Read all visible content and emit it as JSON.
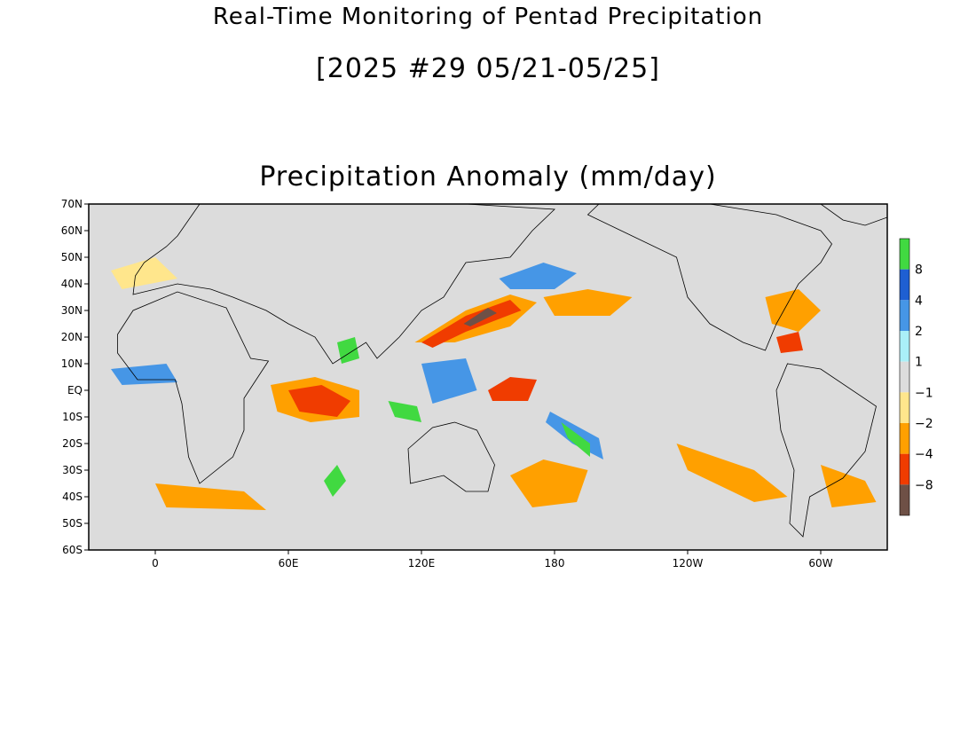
{
  "titles": {
    "main": "Real-Time Monitoring of Pentad Precipitation",
    "period": "[2025 #29 05/21-05/25]",
    "panel": "Precipitation Anomaly (mm/day)"
  },
  "map": {
    "lon_range": [
      -30,
      330
    ],
    "lat_range": [
      -60,
      70
    ],
    "lat_ticks": [
      {
        "lat": 70,
        "label": "70N"
      },
      {
        "lat": 60,
        "label": "60N"
      },
      {
        "lat": 50,
        "label": "50N"
      },
      {
        "lat": 40,
        "label": "40N"
      },
      {
        "lat": 30,
        "label": "30N"
      },
      {
        "lat": 20,
        "label": "20N"
      },
      {
        "lat": 10,
        "label": "10N"
      },
      {
        "lat": 0,
        "label": "EQ"
      },
      {
        "lat": -10,
        "label": "10S"
      },
      {
        "lat": -20,
        "label": "20S"
      },
      {
        "lat": -30,
        "label": "30S"
      },
      {
        "lat": -40,
        "label": "40S"
      },
      {
        "lat": -50,
        "label": "50S"
      },
      {
        "lat": -60,
        "label": "60S"
      }
    ],
    "lon_ticks": [
      {
        "lon": 0,
        "label": "0"
      },
      {
        "lon": 60,
        "label": "60E"
      },
      {
        "lon": 120,
        "label": "120E"
      },
      {
        "lon": 180,
        "label": "180"
      },
      {
        "lon": 240,
        "label": "120W"
      },
      {
        "lon": 300,
        "label": "60W"
      }
    ],
    "background_color": "#dcdcdc",
    "coastline_color": "#000000"
  },
  "colorbar": {
    "bins": [
      {
        "color": "#41d941"
      },
      {
        "color": "#1e5fd2"
      },
      {
        "color": "#4696e6"
      },
      {
        "color": "#aaf0f8"
      },
      {
        "color": "#dcdcdc"
      },
      {
        "color": "#ffe68c"
      },
      {
        "color": "#ffa000"
      },
      {
        "color": "#f03c00"
      },
      {
        "color": "#6e5046"
      }
    ],
    "labels": [
      "8",
      "4",
      "2",
      "1",
      "−1",
      "−2",
      "−4",
      "−8"
    ]
  },
  "anomaly_regions": [
    {
      "name": "nw-pacific-band",
      "category": "dry",
      "color": "#ffa000",
      "poly": [
        [
          117,
          18
        ],
        [
          140,
          30
        ],
        [
          160,
          36
        ],
        [
          172,
          33
        ],
        [
          160,
          24
        ],
        [
          135,
          18
        ]
      ]
    },
    {
      "name": "nw-pacific-core",
      "category": "very-dry",
      "color": "#f03c00",
      "poly": [
        [
          120,
          18
        ],
        [
          140,
          28
        ],
        [
          160,
          34
        ],
        [
          165,
          30
        ],
        [
          140,
          22
        ],
        [
          125,
          16
        ]
      ]
    },
    {
      "name": "nw-pacific-extreme",
      "category": "extreme-dry",
      "color": "#6e5046",
      "poly": [
        [
          139,
          25
        ],
        [
          150,
          31
        ],
        [
          154,
          29
        ],
        [
          142,
          24
        ]
      ]
    },
    {
      "name": "central-pacific-dry",
      "category": "dry",
      "color": "#ffa000",
      "poly": [
        [
          175,
          35
        ],
        [
          195,
          38
        ],
        [
          215,
          35
        ],
        [
          205,
          28
        ],
        [
          180,
          28
        ]
      ]
    },
    {
      "name": "indian-ocean-dry",
      "category": "dry",
      "color": "#ffa000",
      "poly": [
        [
          52,
          2
        ],
        [
          72,
          5
        ],
        [
          92,
          0
        ],
        [
          92,
          -10
        ],
        [
          70,
          -12
        ],
        [
          55,
          -8
        ]
      ]
    },
    {
      "name": "indian-ocean-core",
      "category": "very-dry",
      "color": "#f03c00",
      "poly": [
        [
          60,
          0
        ],
        [
          75,
          2
        ],
        [
          88,
          -4
        ],
        [
          82,
          -10
        ],
        [
          65,
          -8
        ]
      ]
    },
    {
      "name": "sw-pacific-dry",
      "category": "dry",
      "color": "#ffa000",
      "poly": [
        [
          160,
          -32
        ],
        [
          175,
          -26
        ],
        [
          195,
          -30
        ],
        [
          190,
          -42
        ],
        [
          170,
          -44
        ]
      ]
    },
    {
      "name": "spcz-wet-outer",
      "category": "wet",
      "color": "#4696e6",
      "poly": [
        [
          178,
          -8
        ],
        [
          200,
          -18
        ],
        [
          202,
          -26
        ],
        [
          188,
          -20
        ],
        [
          176,
          -12
        ]
      ]
    },
    {
      "name": "spcz-wet-core",
      "category": "very-wet",
      "color": "#41d941",
      "poly": [
        [
          183,
          -12
        ],
        [
          196,
          -20
        ],
        [
          196,
          -25
        ],
        [
          186,
          -18
        ]
      ]
    },
    {
      "name": "south-indian-wet",
      "category": "very-wet",
      "color": "#41d941",
      "poly": [
        [
          76,
          -34
        ],
        [
          82,
          -28
        ],
        [
          86,
          -34
        ],
        [
          80,
          -40
        ]
      ]
    },
    {
      "name": "bay-bengal-wet",
      "category": "very-wet",
      "color": "#41d941",
      "poly": [
        [
          82,
          18
        ],
        [
          90,
          20
        ],
        [
          92,
          12
        ],
        [
          84,
          10
        ]
      ]
    },
    {
      "name": "equatorial-pacific-dry",
      "category": "very-dry",
      "color": "#f03c00",
      "poly": [
        [
          150,
          0
        ],
        [
          160,
          5
        ],
        [
          172,
          4
        ],
        [
          168,
          -4
        ],
        [
          152,
          -4
        ]
      ]
    },
    {
      "name": "south-atlantic-dry",
      "category": "dry",
      "color": "#ffa000",
      "poly": [
        [
          300,
          -28
        ],
        [
          320,
          -34
        ],
        [
          325,
          -42
        ],
        [
          305,
          -44
        ]
      ]
    },
    {
      "name": "south-pacific-east-dry",
      "category": "dry",
      "color": "#ffa000",
      "poly": [
        [
          235,
          -20
        ],
        [
          270,
          -30
        ],
        [
          285,
          -40
        ],
        [
          270,
          -42
        ],
        [
          240,
          -30
        ]
      ]
    },
    {
      "name": "us-east-dry",
      "category": "dry",
      "color": "#ffa000",
      "poly": [
        [
          275,
          35
        ],
        [
          290,
          38
        ],
        [
          300,
          30
        ],
        [
          290,
          22
        ],
        [
          278,
          25
        ]
      ]
    },
    {
      "name": "caribbean-dry",
      "category": "very-dry",
      "color": "#f03c00",
      "poly": [
        [
          280,
          20
        ],
        [
          290,
          22
        ],
        [
          292,
          15
        ],
        [
          282,
          14
        ]
      ]
    },
    {
      "name": "north-pacific-wet",
      "category": "wet",
      "color": "#4696e6",
      "poly": [
        [
          155,
          42
        ],
        [
          175,
          48
        ],
        [
          190,
          44
        ],
        [
          180,
          38
        ],
        [
          160,
          38
        ]
      ]
    },
    {
      "name": "west-pacific-wet",
      "category": "wet",
      "color": "#4696e6",
      "poly": [
        [
          120,
          10
        ],
        [
          140,
          12
        ],
        [
          145,
          0
        ],
        [
          125,
          -5
        ]
      ]
    },
    {
      "name": "maritime-wet",
      "category": "very-wet",
      "color": "#41d941",
      "poly": [
        [
          105,
          -4
        ],
        [
          118,
          -6
        ],
        [
          120,
          -12
        ],
        [
          108,
          -10
        ]
      ]
    },
    {
      "name": "africa-west-wet",
      "category": "wet",
      "color": "#4696e6",
      "poly": [
        [
          -20,
          8
        ],
        [
          5,
          10
        ],
        [
          10,
          3
        ],
        [
          -15,
          2
        ]
      ]
    },
    {
      "name": "europe-dry",
      "category": "moderate-dry",
      "color": "#ffe68c",
      "poly": [
        [
          -20,
          45
        ],
        [
          0,
          50
        ],
        [
          10,
          42
        ],
        [
          -15,
          38
        ]
      ]
    },
    {
      "name": "atlantic-south-dry",
      "category": "dry",
      "color": "#ffa000",
      "poly": [
        [
          0,
          -35
        ],
        [
          40,
          -38
        ],
        [
          50,
          -45
        ],
        [
          5,
          -44
        ]
      ]
    }
  ],
  "coastlines": [
    {
      "name": "africa",
      "poly": [
        [
          -17,
          21
        ],
        [
          -10,
          30
        ],
        [
          10,
          37
        ],
        [
          32,
          31
        ],
        [
          43,
          12
        ],
        [
          51,
          11
        ],
        [
          40,
          -3
        ],
        [
          40,
          -15
        ],
        [
          35,
          -25
        ],
        [
          20,
          -35
        ],
        [
          15,
          -25
        ],
        [
          12,
          -5
        ],
        [
          9,
          4
        ],
        [
          -8,
          4
        ],
        [
          -17,
          14
        ]
      ]
    },
    {
      "name": "eurasia",
      "poly": [
        [
          -10,
          36
        ],
        [
          -9,
          43
        ],
        [
          -5,
          48
        ],
        [
          5,
          54
        ],
        [
          10,
          58
        ],
        [
          20,
          70
        ],
        [
          60,
          70
        ],
        [
          100,
          70
        ],
        [
          140,
          70
        ],
        [
          180,
          68
        ],
        [
          170,
          60
        ],
        [
          160,
          50
        ],
        [
          140,
          48
        ],
        [
          130,
          35
        ],
        [
          120,
          30
        ],
        [
          110,
          20
        ],
        [
          100,
          12
        ],
        [
          95,
          18
        ],
        [
          80,
          10
        ],
        [
          72,
          20
        ],
        [
          60,
          25
        ],
        [
          50,
          30
        ],
        [
          35,
          35
        ],
        [
          25,
          38
        ],
        [
          10,
          40
        ],
        [
          0,
          38
        ]
      ]
    },
    {
      "name": "australia",
      "poly": [
        [
          114,
          -22
        ],
        [
          125,
          -14
        ],
        [
          135,
          -12
        ],
        [
          145,
          -15
        ],
        [
          153,
          -28
        ],
        [
          150,
          -38
        ],
        [
          140,
          -38
        ],
        [
          130,
          -32
        ],
        [
          115,
          -35
        ]
      ]
    },
    {
      "name": "north-america",
      "poly": [
        [
          195,
          66
        ],
        [
          210,
          60
        ],
        [
          235,
          50
        ],
        [
          240,
          35
        ],
        [
          250,
          25
        ],
        [
          265,
          18
        ],
        [
          275,
          15
        ],
        [
          280,
          25
        ],
        [
          290,
          40
        ],
        [
          300,
          48
        ],
        [
          305,
          55
        ],
        [
          300,
          60
        ],
        [
          280,
          66
        ],
        [
          250,
          70
        ],
        [
          200,
          70
        ]
      ]
    },
    {
      "name": "south-america",
      "poly": [
        [
          280,
          0
        ],
        [
          285,
          10
        ],
        [
          300,
          8
        ],
        [
          325,
          -6
        ],
        [
          320,
          -23
        ],
        [
          310,
          -33
        ],
        [
          295,
          -40
        ],
        [
          292,
          -55
        ],
        [
          286,
          -50
        ],
        [
          288,
          -30
        ],
        [
          282,
          -15
        ]
      ]
    },
    {
      "name": "greenland",
      "poly": [
        [
          300,
          70
        ],
        [
          330,
          70
        ],
        [
          330,
          65
        ],
        [
          320,
          62
        ],
        [
          310,
          64
        ]
      ]
    }
  ]
}
